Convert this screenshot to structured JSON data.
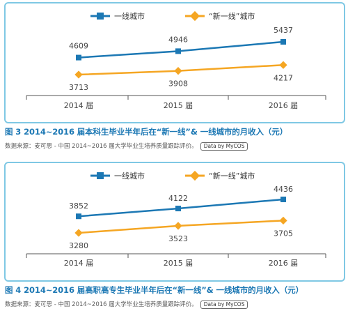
{
  "colors": {
    "first_tier": "#1c78b4",
    "new_first_tier": "#f5a623",
    "axis": "#555555",
    "text": "#444444"
  },
  "charts": [
    {
      "caption": "图 3  2014~2016 届本科生毕业半年后在“新一线”& 一线城市的月收入（元）",
      "source": "数据来源：麦可思 - 中国 2014~2016 届大学毕业生培养质量跟踪评价。",
      "badge": "Data by MyCOS"
    },
    {
      "caption": "图 4  2014~2016 届高职高专生毕业半年后在“新一线”& 一线城市的月收入（元）",
      "source": "数据来源：麦可思 - 中国 2014~2016 届大学毕业生培养质量跟踪评价。",
      "badge": "Data by MyCOS"
    }
  ],
  "chart_data": [
    {
      "type": "line",
      "categories": [
        "2014 届",
        "2015 届",
        "2016 届"
      ],
      "series": [
        {
          "name": "一线城市",
          "values": [
            4609,
            4946,
            5437
          ],
          "color": "#1c78b4"
        },
        {
          "name": "“新一线”城市",
          "values": [
            3713,
            3908,
            4217
          ],
          "color": "#f5a623"
        }
      ],
      "legend": "top-center",
      "grid": false
    },
    {
      "type": "line",
      "categories": [
        "2014 届",
        "2015 届",
        "2016 届"
      ],
      "series": [
        {
          "name": "一线城市",
          "values": [
            3852,
            4122,
            4436
          ],
          "color": "#1c78b4"
        },
        {
          "name": "“新一线”城市",
          "values": [
            3280,
            3523,
            3705
          ],
          "color": "#f5a623"
        }
      ],
      "legend": "top-center",
      "grid": false
    }
  ]
}
